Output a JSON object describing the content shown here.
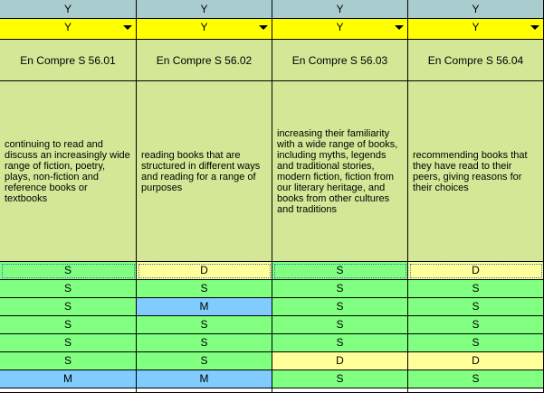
{
  "columns": [
    {
      "header": "Y",
      "filter_value": "Y",
      "code": "En Compre S  56.01",
      "description": "continuing to read and discuss an increasingly wide range of fiction, poetry, plays, non-fiction and reference books or textbooks",
      "values": [
        "S",
        "S",
        "S",
        "S",
        "S",
        "S",
        "M"
      ]
    },
    {
      "header": "Y",
      "filter_value": "Y",
      "code": "En Compre S  56.02",
      "description": "reading books that are structured in different ways and reading for a range of purposes",
      "values": [
        "D",
        "S",
        "M",
        "S",
        "S",
        "S",
        "M"
      ]
    },
    {
      "header": "Y",
      "filter_value": "Y",
      "code": "En Compre S  56.03",
      "description": "increasing their familiarity with a wide range of books, including myths, legends and traditional stories, modern fiction, fiction from our literary heritage, and books from other cultures and traditions",
      "values": [
        "S",
        "S",
        "S",
        "S",
        "S",
        "D",
        "S"
      ]
    },
    {
      "header": "Y",
      "filter_value": "Y",
      "code": "En Compre S  56.04",
      "description": "recommending books that they have read to their peers, giving reasons for their choices",
      "values": [
        "D",
        "S",
        "S",
        "S",
        "S",
        "D",
        "S"
      ]
    }
  ],
  "value_colors": {
    "S": "#80ff80",
    "D": "#ffff99",
    "M": "#80ccff"
  },
  "selected_row": 0
}
